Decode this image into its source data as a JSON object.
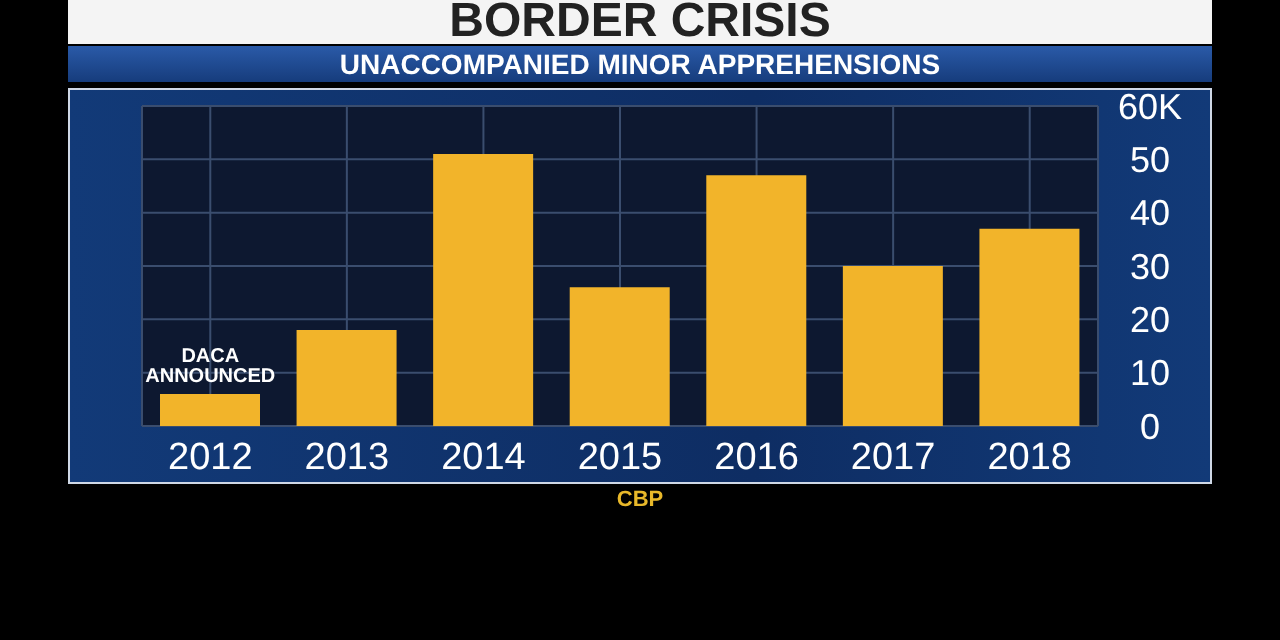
{
  "chart_data": {
    "type": "bar",
    "title": "BORDER CRISIS",
    "subtitle": "UNACCOMPANIED MINOR APPREHENSIONS",
    "categories": [
      "2012",
      "2013",
      "2014",
      "2015",
      "2016",
      "2017",
      "2018"
    ],
    "values": [
      6,
      18,
      51,
      26,
      47,
      30,
      37
    ],
    "color": "#f2b42a",
    "ylim": [
      0,
      60
    ],
    "yticks": [
      0,
      10,
      20,
      30,
      40,
      50,
      {
        "value": 60,
        "label": "60K"
      }
    ],
    "grid": true,
    "annotations": [
      {
        "text": "DACA ANNOUNCED",
        "x": "2012",
        "y": 6
      },
      "CBP"
    ]
  }
}
